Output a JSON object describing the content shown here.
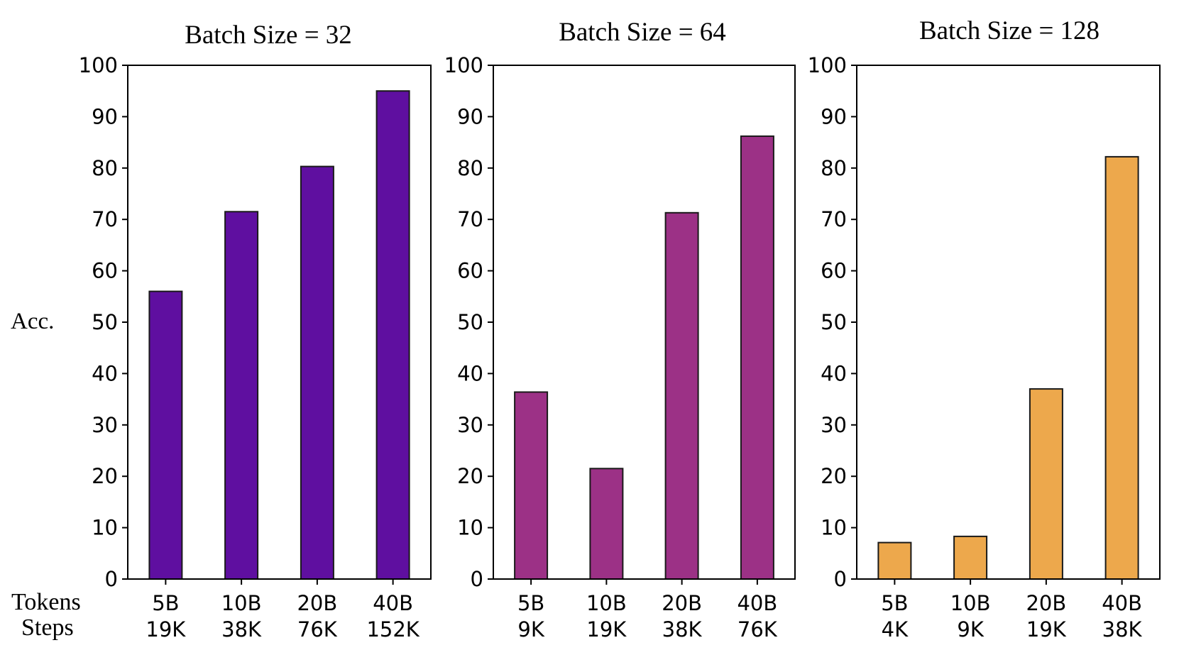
{
  "figure": {
    "ylabel": "Acc.",
    "row_labels": [
      "Tokens",
      "Steps"
    ],
    "colors": [
      "#5f0fa0",
      "#9c3186",
      "#eda84c"
    ]
  },
  "chart_data": [
    {
      "type": "bar",
      "title": "Batch Size = 32",
      "categories": [
        "5B",
        "10B",
        "20B",
        "40B"
      ],
      "steps": [
        "19K",
        "38K",
        "76K",
        "152K"
      ],
      "values": [
        56,
        71.5,
        80.3,
        95
      ],
      "color": "#5f0fa0",
      "ylim": [
        0,
        100
      ],
      "yticks": [
        0,
        10,
        20,
        30,
        40,
        50,
        60,
        70,
        80,
        90,
        100
      ],
      "xlabel": "",
      "ylabel": "Acc.",
      "grid": false
    },
    {
      "type": "bar",
      "title": "Batch Size = 64",
      "categories": [
        "5B",
        "10B",
        "20B",
        "40B"
      ],
      "steps": [
        "9K",
        "19K",
        "38K",
        "76K"
      ],
      "values": [
        36.4,
        21.5,
        71.3,
        86.2
      ],
      "color": "#9c3186",
      "ylim": [
        0,
        100
      ],
      "yticks": [
        0,
        10,
        20,
        30,
        40,
        50,
        60,
        70,
        80,
        90,
        100
      ],
      "xlabel": "",
      "ylabel": "",
      "grid": false
    },
    {
      "type": "bar",
      "title": "Batch Size = 128",
      "categories": [
        "5B",
        "10B",
        "20B",
        "40B"
      ],
      "steps": [
        "4K",
        "9K",
        "19K",
        "38K"
      ],
      "values": [
        7.1,
        8.3,
        37,
        82.2
      ],
      "color": "#eda84c",
      "ylim": [
        0,
        100
      ],
      "yticks": [
        0,
        10,
        20,
        30,
        40,
        50,
        60,
        70,
        80,
        90,
        100
      ],
      "xlabel": "",
      "ylabel": "",
      "grid": false
    }
  ]
}
